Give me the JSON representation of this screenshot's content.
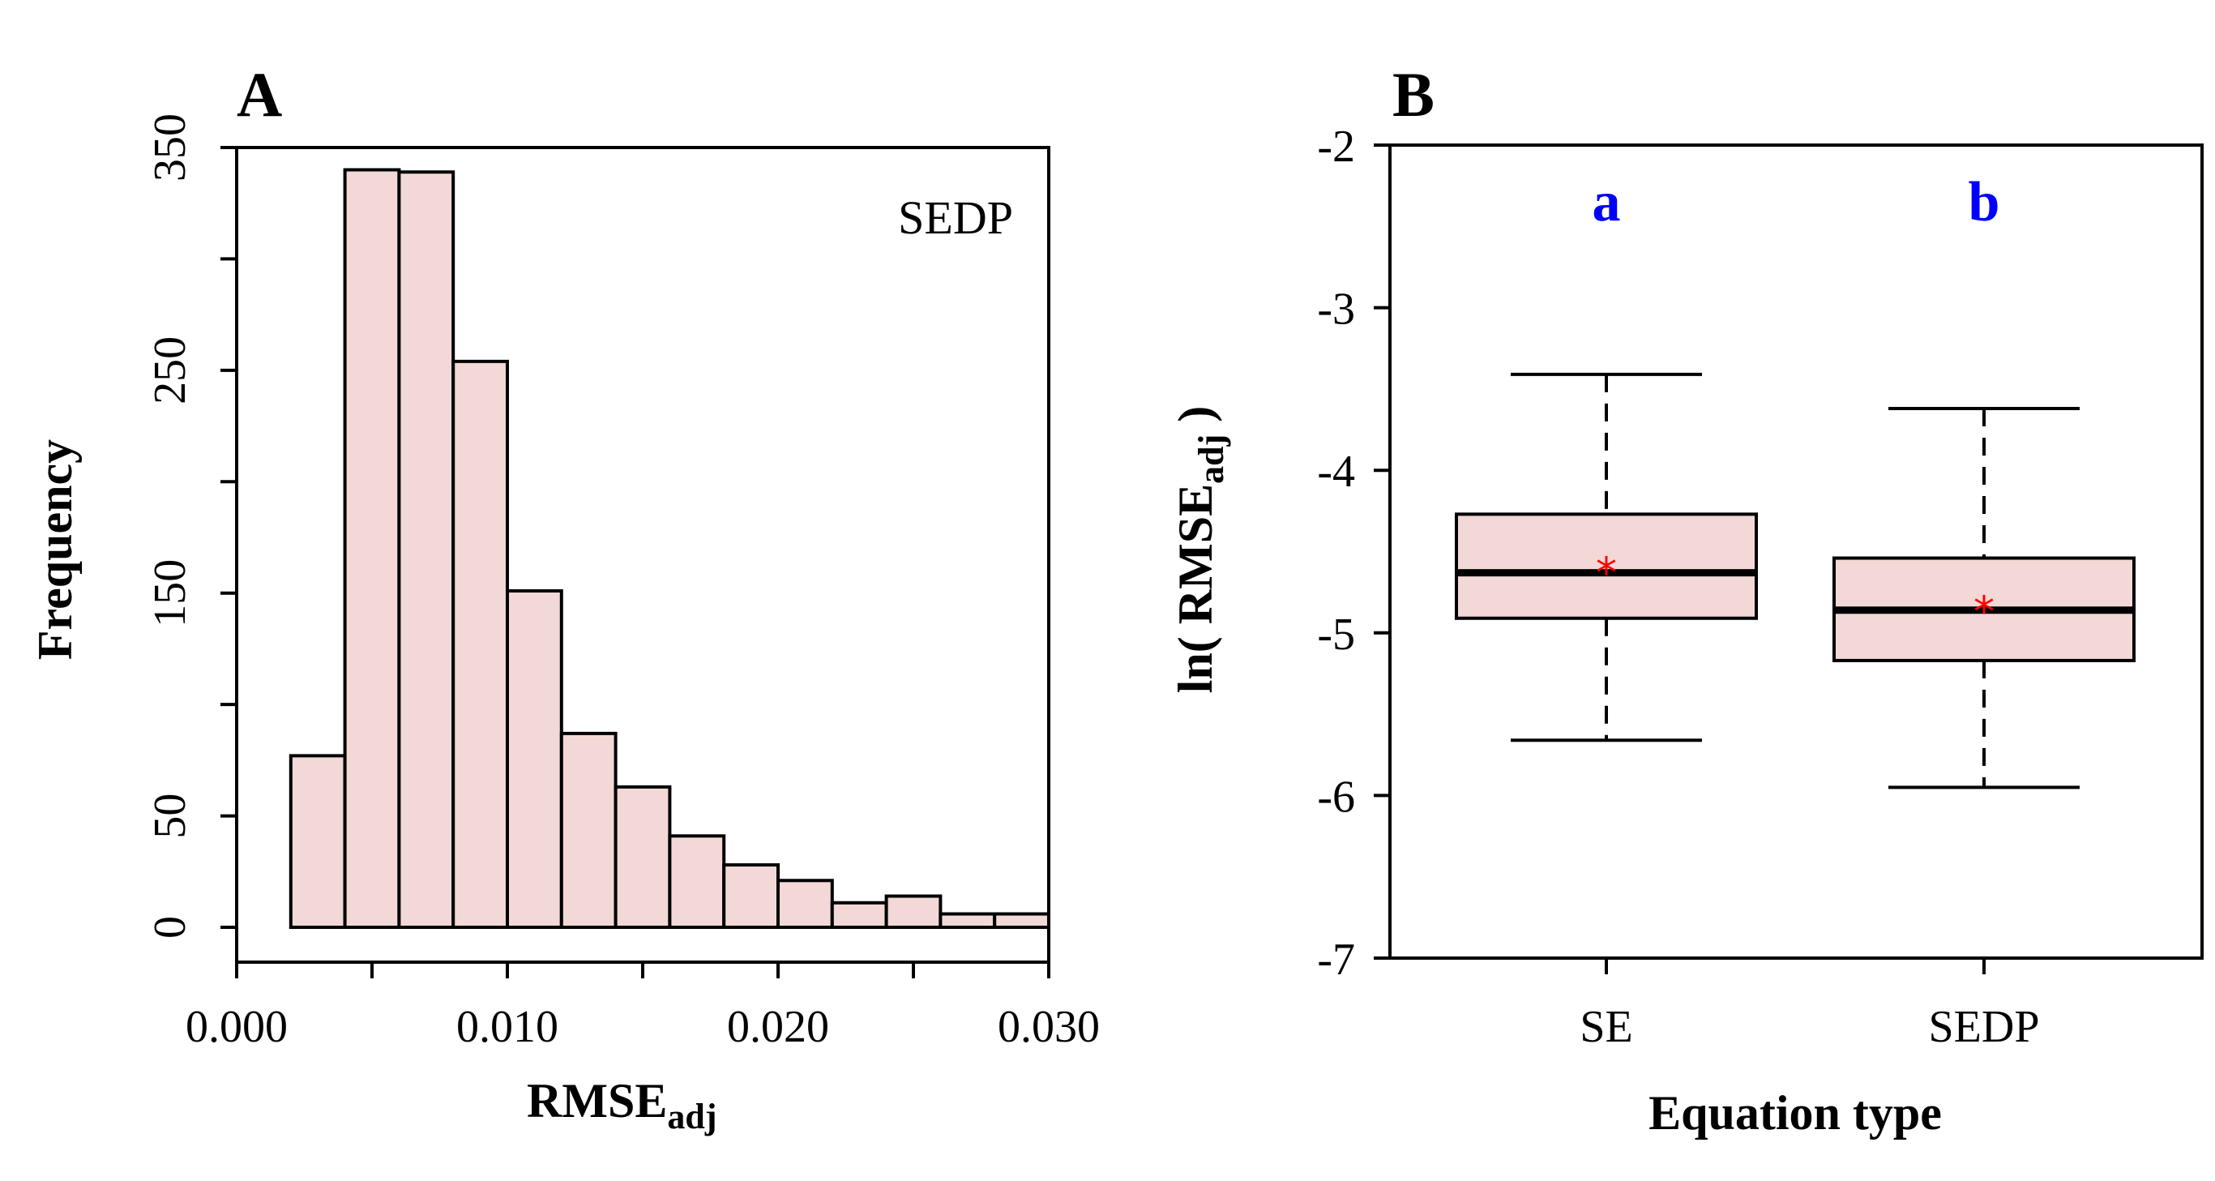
{
  "chart_data": [
    {
      "type": "bar",
      "subtype": "histogram",
      "panel": "A",
      "annotation": "SEDP",
      "xlabel_main": "RMSE",
      "xlabel_sub": "adj",
      "ylabel": "Frequency",
      "xlim": [
        0.0,
        0.03
      ],
      "ylim": [
        0,
        350
      ],
      "x_ticks": [
        "0.000",
        "0.010",
        "0.020",
        "0.030"
      ],
      "y_ticks": [
        "0",
        "50",
        "150",
        "250",
        "350"
      ],
      "bin_width": 0.002,
      "bins": [
        {
          "start": 0.002,
          "end": 0.004,
          "count": 77
        },
        {
          "start": 0.004,
          "end": 0.006,
          "count": 340
        },
        {
          "start": 0.006,
          "end": 0.008,
          "count": 339
        },
        {
          "start": 0.008,
          "end": 0.01,
          "count": 254
        },
        {
          "start": 0.01,
          "end": 0.012,
          "count": 151
        },
        {
          "start": 0.012,
          "end": 0.014,
          "count": 87
        },
        {
          "start": 0.014,
          "end": 0.016,
          "count": 63
        },
        {
          "start": 0.016,
          "end": 0.018,
          "count": 41
        },
        {
          "start": 0.018,
          "end": 0.02,
          "count": 28
        },
        {
          "start": 0.02,
          "end": 0.022,
          "count": 21
        },
        {
          "start": 0.022,
          "end": 0.024,
          "count": 11
        },
        {
          "start": 0.024,
          "end": 0.026,
          "count": 14
        },
        {
          "start": 0.026,
          "end": 0.028,
          "count": 6
        },
        {
          "start": 0.028,
          "end": 0.03,
          "count": 6
        }
      ],
      "fill": "#f2d8d6",
      "stroke": "#000000"
    },
    {
      "type": "box",
      "panel": "B",
      "xlabel": "Equation type",
      "ylabel_prefix": "ln( RMSE",
      "ylabel_sub": "adj",
      "ylabel_suffix": " )",
      "ylim": [
        -7,
        -2
      ],
      "y_ticks": [
        "-2",
        "-3",
        "-4",
        "-5",
        "-6",
        "-7"
      ],
      "categories": [
        "SE",
        "SEDP"
      ],
      "boxes": [
        {
          "name": "SE",
          "whisker_low": -5.66,
          "q1": -4.91,
          "median": -4.63,
          "q3": -4.27,
          "whisker_high": -3.41,
          "mean": -4.6,
          "group": "a"
        },
        {
          "name": "SEDP",
          "whisker_low": -5.95,
          "q1": -5.17,
          "median": -4.86,
          "q3": -4.54,
          "whisker_high": -3.62,
          "mean": -4.84,
          "group": "b"
        }
      ],
      "mean_marker": "*",
      "fill": "#f2d8d6",
      "mean_color": "#ff0000",
      "group_color": "#0000ff"
    }
  ]
}
